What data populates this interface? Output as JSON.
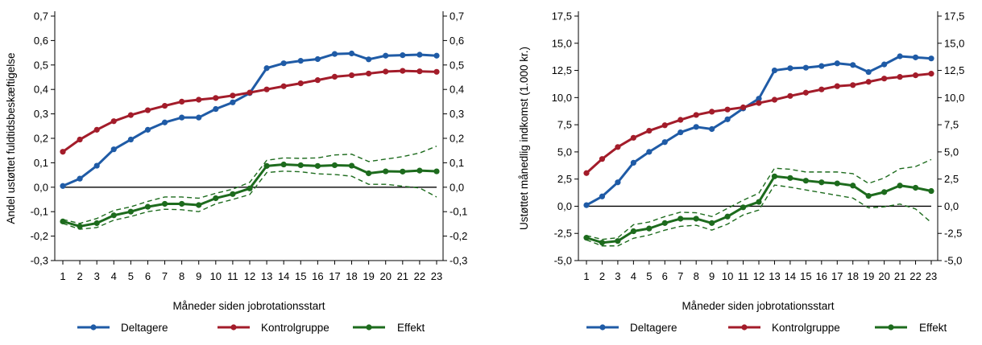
{
  "chart_data": [
    {
      "type": "line",
      "xlabel": "Måneder siden jobrotationsstart",
      "ylabel": "Andel ustøttet fuldtidsbeskæftigelse",
      "x": [
        1,
        2,
        3,
        4,
        5,
        6,
        7,
        8,
        9,
        10,
        11,
        12,
        13,
        14,
        15,
        16,
        17,
        18,
        19,
        20,
        21,
        22,
        23
      ],
      "xlim": [
        1,
        23
      ],
      "ylim": [
        -0.3,
        0.7
      ],
      "yticks": [
        -0.3,
        -0.2,
        -0.1,
        0.0,
        0.1,
        0.2,
        0.3,
        0.4,
        0.5,
        0.6,
        0.7
      ],
      "ytick_labels": [
        "-0,3",
        "-0,2",
        "-0,1",
        "0,0",
        "0,1",
        "0,2",
        "0,3",
        "0,4",
        "0,5",
        "0,6",
        "0,7"
      ],
      "grid": false,
      "legend_position": "bottom",
      "series": [
        {
          "name": "Deltagere",
          "color": "#1f5ba6",
          "values": [
            0.005,
            0.035,
            0.088,
            0.155,
            0.195,
            0.235,
            0.265,
            0.285,
            0.285,
            0.32,
            0.347,
            0.385,
            0.487,
            0.507,
            0.517,
            0.524,
            0.545,
            0.547,
            0.523,
            0.538,
            0.54,
            0.542,
            0.538
          ]
        },
        {
          "name": "Kontrolgruppe",
          "color": "#a31c2a",
          "values": [
            0.145,
            0.195,
            0.235,
            0.27,
            0.295,
            0.315,
            0.333,
            0.35,
            0.358,
            0.365,
            0.375,
            0.387,
            0.4,
            0.413,
            0.425,
            0.438,
            0.452,
            0.458,
            0.465,
            0.473,
            0.476,
            0.474,
            0.472
          ]
        },
        {
          "name": "Effekt",
          "color": "#1d6b1d",
          "values": [
            -0.14,
            -0.16,
            -0.147,
            -0.115,
            -0.1,
            -0.08,
            -0.068,
            -0.068,
            -0.073,
            -0.045,
            -0.028,
            -0.005,
            0.087,
            0.093,
            0.09,
            0.087,
            0.09,
            0.088,
            0.057,
            0.065,
            0.064,
            0.068,
            0.065
          ]
        }
      ],
      "confidence_band": {
        "series": "Effekt",
        "upper": [
          -0.132,
          -0.148,
          -0.128,
          -0.095,
          -0.08,
          -0.058,
          -0.04,
          -0.04,
          -0.045,
          -0.025,
          -0.008,
          0.02,
          0.11,
          0.12,
          0.118,
          0.12,
          0.132,
          0.135,
          0.105,
          0.115,
          0.125,
          0.14,
          0.168
        ],
        "lower": [
          -0.148,
          -0.172,
          -0.165,
          -0.135,
          -0.12,
          -0.1,
          -0.09,
          -0.092,
          -0.1,
          -0.068,
          -0.05,
          -0.03,
          0.06,
          0.066,
          0.063,
          0.055,
          0.052,
          0.045,
          0.012,
          0.012,
          0.004,
          -0.003,
          -0.04
        ]
      }
    },
    {
      "type": "line",
      "xlabel": "Måneder siden jobrotationsstart",
      "ylabel": "Ustøttet månedlig indkomst (1.000 kr.)",
      "x": [
        1,
        2,
        3,
        4,
        5,
        6,
        7,
        8,
        9,
        10,
        11,
        12,
        13,
        14,
        15,
        16,
        17,
        18,
        19,
        20,
        21,
        22,
        23
      ],
      "xlim": [
        1,
        23
      ],
      "ylim": [
        -5.0,
        17.5
      ],
      "yticks": [
        -5.0,
        -2.5,
        0.0,
        2.5,
        5.0,
        7.5,
        10.0,
        12.5,
        15.0,
        17.5
      ],
      "ytick_labels": [
        "-5,0",
        "-2,5",
        "0,0",
        "2,5",
        "5,0",
        "7,5",
        "10,0",
        "12,5",
        "15,0",
        "17,5"
      ],
      "grid": false,
      "legend_position": "bottom",
      "series": [
        {
          "name": "Deltagere",
          "color": "#1f5ba6",
          "values": [
            0.1,
            0.9,
            2.2,
            4.0,
            5.0,
            5.9,
            6.8,
            7.3,
            7.1,
            8.0,
            9.0,
            9.9,
            12.5,
            12.7,
            12.75,
            12.9,
            13.15,
            13.0,
            12.35,
            13.05,
            13.8,
            13.7,
            13.6
          ]
        },
        {
          "name": "Kontrolgruppe",
          "color": "#a31c2a",
          "values": [
            3.05,
            4.35,
            5.45,
            6.3,
            6.95,
            7.45,
            7.95,
            8.4,
            8.7,
            8.9,
            9.1,
            9.5,
            9.8,
            10.15,
            10.45,
            10.75,
            11.05,
            11.15,
            11.45,
            11.75,
            11.9,
            12.05,
            12.2
          ]
        },
        {
          "name": "Effekt",
          "color": "#1d6b1d",
          "values": [
            -2.9,
            -3.35,
            -3.2,
            -2.3,
            -2.05,
            -1.55,
            -1.15,
            -1.15,
            -1.55,
            -0.95,
            -0.1,
            0.4,
            2.75,
            2.6,
            2.35,
            2.2,
            2.1,
            1.9,
            0.95,
            1.3,
            1.9,
            1.7,
            1.4
          ]
        }
      ],
      "confidence_band": {
        "series": "Effekt",
        "upper": [
          -2.7,
          -3.05,
          -2.9,
          -1.7,
          -1.45,
          -0.95,
          -0.55,
          -0.6,
          -0.95,
          -0.2,
          0.55,
          1.2,
          3.5,
          3.4,
          3.15,
          3.15,
          3.15,
          3.0,
          2.1,
          2.6,
          3.45,
          3.65,
          4.3
        ],
        "lower": [
          -3.1,
          -3.65,
          -3.65,
          -2.95,
          -2.65,
          -2.2,
          -1.85,
          -1.75,
          -2.2,
          -1.65,
          -0.8,
          -0.35,
          1.95,
          1.75,
          1.5,
          1.25,
          1.0,
          0.75,
          -0.15,
          -0.05,
          0.2,
          -0.25,
          -1.5
        ]
      }
    }
  ]
}
